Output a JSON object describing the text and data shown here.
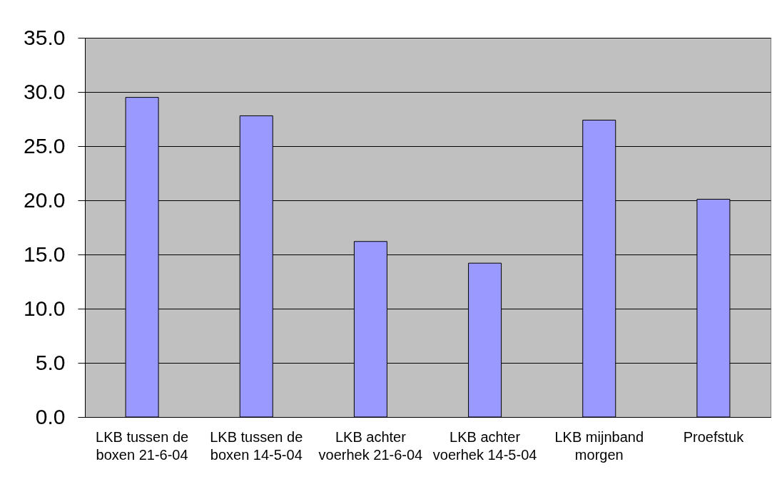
{
  "chart_data": {
    "type": "bar",
    "categories": [
      "LKB tussen de boxen 21-6-04",
      "LKB tussen de boxen 14-5-04",
      "LKB achter voerhek 21-6-04",
      "LKB achter voerhek 14-5-04",
      "LKB mijnband morgen",
      "Proefstuk"
    ],
    "values": [
      29.5,
      27.8,
      16.2,
      14.2,
      27.4,
      20.1
    ],
    "color": "#9999ff",
    "ylim": [
      0,
      35
    ],
    "yticks": [
      {
        "value": 0,
        "label": "0.0"
      },
      {
        "value": 5,
        "label": "5.0"
      },
      {
        "value": 10,
        "label": "10.0"
      },
      {
        "value": 15,
        "label": "15.0"
      },
      {
        "value": 20,
        "label": "20.0"
      },
      {
        "value": 25,
        "label": "25.0"
      },
      {
        "value": 30,
        "label": "30.0"
      },
      {
        "value": 35,
        "label": "35.0"
      }
    ],
    "grid": "y"
  }
}
